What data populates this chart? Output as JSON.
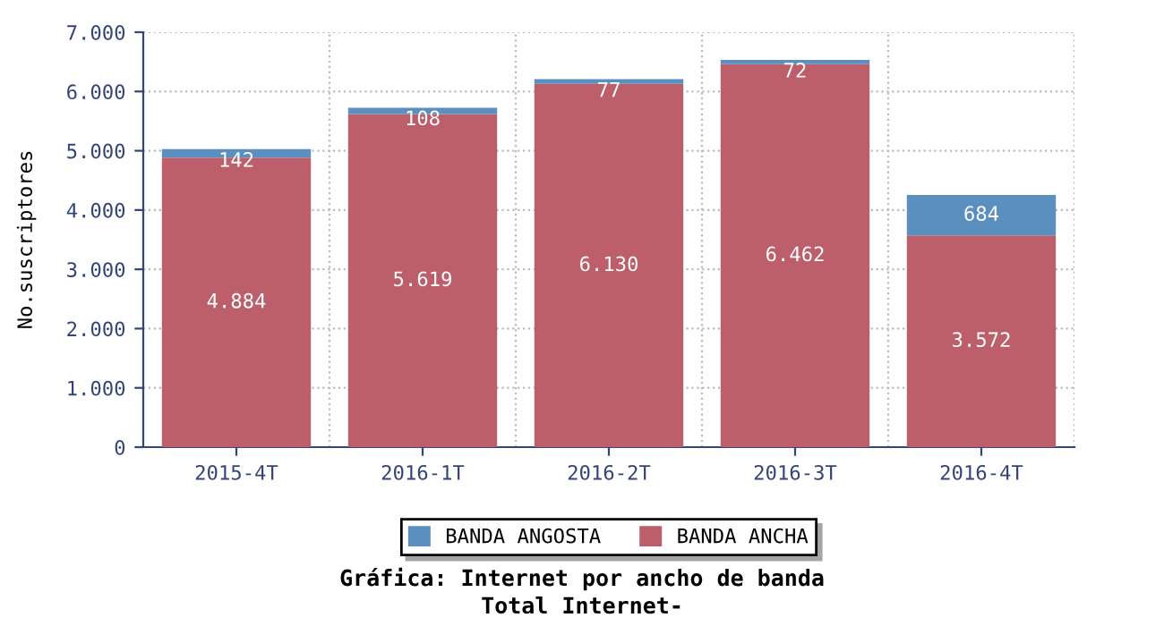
{
  "chart_data": {
    "type": "bar",
    "stacked": true,
    "title": "Gráfica: Internet por ancho de banda",
    "subtitle": "Total Internet-",
    "ylabel": "No.suscriptores",
    "categories": [
      "2015-4T",
      "2016-1T",
      "2016-2T",
      "2016-3T",
      "2016-4T"
    ],
    "series": [
      {
        "name": "BANDA ANCHA",
        "color": "#bc5f6a",
        "values": [
          4884,
          5619,
          6130,
          6462,
          3572
        ],
        "value_labels": [
          "4.884",
          "5.619",
          "6.130",
          "6.462",
          "3.572"
        ]
      },
      {
        "name": "BANDA ANGOSTA",
        "color": "#5b8fbf",
        "values": [
          142,
          108,
          77,
          72,
          684
        ],
        "value_labels": [
          "142",
          "108",
          "77",
          "72",
          "684"
        ]
      }
    ],
    "ylim": [
      0,
      7000
    ],
    "yticks": [
      {
        "value": 0,
        "label": "0"
      },
      {
        "value": 1000,
        "label": "1.000"
      },
      {
        "value": 2000,
        "label": "2.000"
      },
      {
        "value": 3000,
        "label": "3.000"
      },
      {
        "value": 4000,
        "label": "4.000"
      },
      {
        "value": 5000,
        "label": "5.000"
      },
      {
        "value": 6000,
        "label": "6.000"
      },
      {
        "value": 7000,
        "label": "7.000"
      }
    ],
    "grid": true,
    "legend": "bottom"
  }
}
